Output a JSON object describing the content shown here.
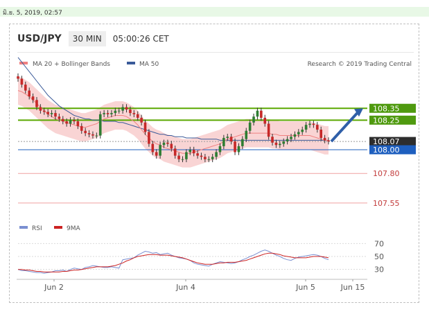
{
  "timestamp": "มิ.ย. 5, 2019, 02:57",
  "header": {
    "pair": "USD/JPY",
    "timeframe": "30 MIN",
    "time": "05:00:26 CET"
  },
  "legend": {
    "ma20": "MA 20 + Bollinger Bands",
    "ma50": "MA 50",
    "credit": "Research © 2019 Trading Central"
  },
  "rsi_legend": {
    "rsi": "RSI",
    "ma9": "9MA"
  },
  "colors": {
    "bull": "#2e7d32",
    "bear": "#c62828",
    "wick": "#333333",
    "bollinger": "#f7c6c6",
    "ma20": "#f08080",
    "ma50": "#3a5a99",
    "resistance": "#5aa800",
    "support": "#1e5fbf",
    "target_lines": "#f0a0a0",
    "arrow": "#2f5fa8",
    "pivot_label": "#2d2d2d",
    "rsi": "#7a8fd1",
    "rsi_ma": "#cc2222"
  },
  "chart_data": [
    {
      "type": "candlestick",
      "title": "USD/JPY 30 MIN",
      "x_ticks": [
        "Jun 2",
        "Jun 4",
        "Jun 5",
        "Jun 15"
      ],
      "ylim": [
        107.45,
        108.65
      ],
      "y_axis_labels": [
        "108.35",
        "108.25",
        "108.07",
        "108.00",
        "107.80",
        "107.55"
      ],
      "levels": [
        {
          "value": 108.35,
          "label": "108.35",
          "role": "resistance"
        },
        {
          "value": 108.25,
          "label": "108.25",
          "role": "resistance"
        },
        {
          "value": 108.07,
          "label": "108.07",
          "role": "pivot"
        },
        {
          "value": 108.0,
          "label": "108.00",
          "role": "support"
        },
        {
          "value": 107.8,
          "label": "107.80",
          "role": "target"
        },
        {
          "value": 107.55,
          "label": "107.55",
          "role": "target"
        }
      ],
      "closes": [
        108.6,
        108.55,
        108.5,
        108.45,
        108.42,
        108.36,
        108.33,
        108.32,
        108.3,
        108.31,
        108.28,
        108.26,
        108.24,
        108.22,
        108.25,
        108.24,
        108.2,
        108.16,
        108.14,
        108.13,
        108.12,
        108.12,
        108.3,
        108.31,
        108.3,
        108.31,
        108.33,
        108.33,
        108.36,
        108.34,
        108.31,
        108.3,
        108.27,
        108.23,
        108.15,
        108.05,
        107.98,
        107.95,
        108.04,
        108.06,
        108.05,
        108.01,
        107.95,
        107.92,
        107.92,
        107.98,
        108.0,
        107.97,
        107.95,
        107.94,
        107.92,
        107.92,
        107.94,
        107.98,
        108.03,
        108.1,
        108.11,
        108.07,
        107.98,
        108.03,
        108.09,
        108.16,
        108.23,
        108.28,
        108.33,
        108.27,
        108.22,
        108.11,
        108.06,
        108.04,
        108.05,
        108.07,
        108.09,
        108.11,
        108.13,
        108.15,
        108.17,
        108.21,
        108.22,
        108.21,
        108.17,
        108.1,
        108.08,
        108.07
      ],
      "ma20": [
        108.5,
        108.49,
        108.47,
        108.45,
        108.42,
        108.39,
        108.36,
        108.33,
        108.3,
        108.28,
        108.26,
        108.25,
        108.24,
        108.23,
        108.22,
        108.21,
        108.2,
        108.19,
        108.19,
        108.2,
        108.21,
        108.22,
        108.24,
        108.26,
        108.27,
        108.28,
        108.29,
        108.29,
        108.29,
        108.28,
        108.26,
        108.24,
        108.21,
        108.17,
        108.13,
        108.1,
        108.07,
        108.05,
        108.04,
        108.02,
        108.01,
        108.0,
        107.99,
        107.98,
        107.97,
        107.97,
        107.97,
        107.98,
        107.99,
        108.0,
        108.01,
        108.02,
        108.03,
        108.04,
        108.05,
        108.07,
        108.09,
        108.1,
        108.11,
        108.12,
        108.13,
        108.14,
        108.14,
        108.14,
        108.14,
        108.14,
        108.14,
        108.14,
        108.13,
        108.13,
        108.12,
        108.12,
        108.12,
        108.12,
        108.12,
        108.12,
        108.12,
        108.12,
        108.12,
        108.11,
        108.1,
        108.09,
        108.08,
        108.08
      ],
      "ma50": [
        108.78,
        108.74,
        108.7,
        108.66,
        108.62,
        108.58,
        108.54,
        108.5,
        108.46,
        108.43,
        108.4,
        108.37,
        108.35,
        108.33,
        108.31,
        108.29,
        108.28,
        108.27,
        108.26,
        108.26,
        108.25,
        108.25,
        108.25,
        108.24,
        108.24,
        108.24,
        108.24,
        108.23,
        108.23,
        108.22,
        108.21,
        108.2,
        108.19,
        108.18,
        108.17,
        108.16,
        108.15,
        108.14,
        108.13,
        108.13,
        108.12,
        108.12,
        108.11,
        108.11,
        108.11,
        108.1,
        108.1,
        108.1,
        108.1,
        108.09,
        108.09,
        108.09,
        108.09,
        108.09,
        108.08,
        108.08,
        108.08,
        108.08,
        108.08,
        108.08,
        108.08,
        108.08,
        108.08,
        108.08,
        108.08,
        108.08,
        108.08,
        108.08,
        108.08,
        108.08,
        108.08,
        108.08,
        108.08,
        108.08,
        108.08,
        108.08,
        108.08,
        108.08,
        108.08,
        108.08,
        108.08,
        108.08,
        108.08,
        108.08
      ],
      "bollinger_width": 0.12,
      "forecast_target": 108.35
    },
    {
      "type": "line",
      "title": "RSI",
      "ylim": [
        20,
        80
      ],
      "y_ticks": [
        30,
        50,
        70
      ],
      "rsi": [
        30,
        28,
        28,
        27,
        26,
        25,
        25,
        24,
        25,
        26,
        28,
        28,
        29,
        27,
        30,
        32,
        31,
        30,
        33,
        34,
        36,
        35,
        34,
        33,
        33,
        34,
        33,
        32,
        45,
        46,
        47,
        48,
        52,
        55,
        58,
        57,
        55,
        56,
        53,
        54,
        55,
        52,
        50,
        48,
        47,
        46,
        44,
        40,
        38,
        37,
        36,
        35,
        38,
        40,
        42,
        41,
        40,
        39,
        40,
        42,
        45,
        47,
        50,
        52,
        55,
        58,
        60,
        58,
        55,
        52,
        50,
        47,
        45,
        44,
        47,
        49,
        50,
        51,
        52,
        53,
        52,
        50,
        47,
        45
      ],
      "ma9": [
        30,
        30,
        29,
        29,
        28,
        27,
        27,
        26,
        26,
        26,
        26,
        26,
        27,
        27,
        28,
        29,
        29,
        30,
        31,
        32,
        33,
        34,
        34,
        34,
        34,
        35,
        36,
        38,
        40,
        43,
        45,
        48,
        50,
        51,
        52,
        53,
        53,
        53,
        52,
        52,
        52,
        51,
        50,
        49,
        48,
        46,
        44,
        42,
        40,
        39,
        38,
        38,
        38,
        39,
        40,
        40,
        41,
        41,
        41,
        42,
        43,
        44,
        46,
        48,
        50,
        52,
        54,
        55,
        55,
        54,
        53,
        51,
        50,
        49,
        48,
        48,
        48,
        48,
        49,
        50,
        50,
        50,
        49,
        48
      ]
    }
  ]
}
